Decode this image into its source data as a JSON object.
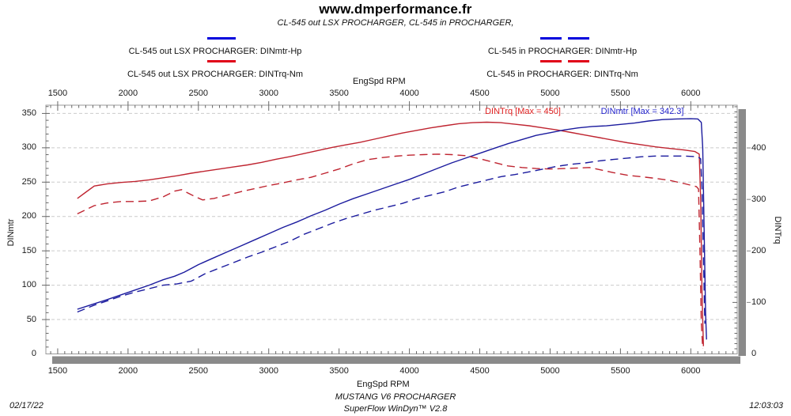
{
  "header": {
    "title": "www.dmperformance.fr",
    "subtitle": "CL-545 out LSX PROCHARGER, CL-545 in PROCHARGER,"
  },
  "legend": {
    "left": [
      {
        "label": "CL-545 out LSX PROCHARGER: DINmtr-Hp",
        "color": "#0000dd",
        "style": "solid"
      },
      {
        "label": "CL-545 out LSX PROCHARGER: DINTrq-Nm",
        "color": "#e00018",
        "style": "solid"
      }
    ],
    "right": [
      {
        "label": "CL-545 in PROCHARGER: DINmtr-Hp",
        "color": "#0000dd",
        "style": "dashed"
      },
      {
        "label": "CL-545 in PROCHARGER: DINTrq-Nm",
        "color": "#e00018",
        "style": "dashed"
      }
    ]
  },
  "axes": {
    "x_label": "EngSpd RPM",
    "y_left_label": "DINmtr",
    "y_right_label": "DINTrq"
  },
  "annotations": [
    {
      "text": "DINTrq [Max = 450]",
      "color": "#e02020"
    },
    {
      "text": "DINmtr [Max = 342.3]",
      "color": "#2222cc"
    }
  ],
  "footer": {
    "vehicle": "MUSTANG V6 PROCHARGER",
    "software": "SuperFlow WinDyn™ V2.8",
    "date": "02/17/22",
    "time": "12:03:03"
  },
  "chart_data": {
    "type": "line",
    "xlabel": "EngSpd RPM",
    "x_range": [
      1416,
      6330
    ],
    "x_ticks": [
      1500,
      2000,
      2500,
      3000,
      3500,
      4000,
      4500,
      5000,
      5500,
      6000
    ],
    "y_left_label": "DINmtr",
    "y_left_range": [
      0,
      362
    ],
    "y_left_ticks": [
      0,
      50,
      100,
      150,
      200,
      250,
      300,
      350
    ],
    "y_right_label": "DINTrq",
    "y_right_range": [
      0,
      483
    ],
    "y_right_ticks": [
      0,
      100,
      200,
      300,
      400
    ],
    "grid": "horizontal-dashed",
    "max_markers": {
      "DINTrq_max": 450,
      "DINmtr_max": 342.3
    },
    "series": [
      {
        "name": "CL-545 out LSX PROCHARGER: DINTrq-Nm",
        "axis": "right",
        "units": "Nm",
        "color": "#bf2430",
        "dash": "solid",
        "points": [
          [
            1640,
            302
          ],
          [
            1700,
            314
          ],
          [
            1760,
            326
          ],
          [
            1850,
            330
          ],
          [
            1950,
            333
          ],
          [
            2050,
            335
          ],
          [
            2150,
            338
          ],
          [
            2250,
            342
          ],
          [
            2350,
            346
          ],
          [
            2450,
            351
          ],
          [
            2550,
            355
          ],
          [
            2650,
            359
          ],
          [
            2750,
            363
          ],
          [
            2850,
            367
          ],
          [
            2950,
            372
          ],
          [
            3050,
            378
          ],
          [
            3150,
            383
          ],
          [
            3250,
            389
          ],
          [
            3350,
            395
          ],
          [
            3450,
            401
          ],
          [
            3550,
            406
          ],
          [
            3650,
            411
          ],
          [
            3750,
            417
          ],
          [
            3850,
            423
          ],
          [
            3950,
            429
          ],
          [
            4050,
            434
          ],
          [
            4150,
            439
          ],
          [
            4250,
            443
          ],
          [
            4350,
            447
          ],
          [
            4450,
            449
          ],
          [
            4550,
            450
          ],
          [
            4650,
            449
          ],
          [
            4750,
            446
          ],
          [
            4850,
            443
          ],
          [
            4950,
            439
          ],
          [
            5050,
            435
          ],
          [
            5150,
            430
          ],
          [
            5250,
            425
          ],
          [
            5350,
            420
          ],
          [
            5450,
            415
          ],
          [
            5550,
            410
          ],
          [
            5650,
            406
          ],
          [
            5750,
            402
          ],
          [
            5850,
            399
          ],
          [
            5950,
            396
          ],
          [
            6030,
            393
          ],
          [
            6060,
            388
          ],
          [
            6070,
            300
          ],
          [
            6080,
            120
          ],
          [
            6090,
            15
          ]
        ]
      },
      {
        "name": "CL-545 out LSX PROCHARGER: DINmtr-Hp",
        "axis": "left",
        "units": "Hp",
        "color": "#1b1b9e",
        "dash": "solid",
        "points": [
          [
            1640,
            65
          ],
          [
            1700,
            69
          ],
          [
            1760,
            73
          ],
          [
            1850,
            79
          ],
          [
            1950,
            86
          ],
          [
            2050,
            93
          ],
          [
            2150,
            100
          ],
          [
            2250,
            108
          ],
          [
            2330,
            113
          ],
          [
            2400,
            119
          ],
          [
            2500,
            130
          ],
          [
            2600,
            139
          ],
          [
            2700,
            148
          ],
          [
            2800,
            157
          ],
          [
            2900,
            166
          ],
          [
            3000,
            175
          ],
          [
            3100,
            184
          ],
          [
            3200,
            192
          ],
          [
            3300,
            201
          ],
          [
            3400,
            209
          ],
          [
            3500,
            218
          ],
          [
            3600,
            226
          ],
          [
            3700,
            233
          ],
          [
            3800,
            240
          ],
          [
            3900,
            247
          ],
          [
            4000,
            254
          ],
          [
            4100,
            262
          ],
          [
            4200,
            270
          ],
          [
            4300,
            278
          ],
          [
            4400,
            285
          ],
          [
            4500,
            292
          ],
          [
            4600,
            299
          ],
          [
            4700,
            306
          ],
          [
            4800,
            312
          ],
          [
            4900,
            318
          ],
          [
            5000,
            322
          ],
          [
            5100,
            326
          ],
          [
            5200,
            329
          ],
          [
            5300,
            331
          ],
          [
            5400,
            332
          ],
          [
            5500,
            334
          ],
          [
            5600,
            336
          ],
          [
            5700,
            339
          ],
          [
            5800,
            341
          ],
          [
            5900,
            342
          ],
          [
            6000,
            342.3
          ],
          [
            6050,
            342
          ],
          [
            6075,
            337
          ],
          [
            6085,
            300
          ],
          [
            6095,
            180
          ],
          [
            6105,
            60
          ],
          [
            6112,
            21
          ]
        ]
      },
      {
        "name": "CL-545 in PROCHARGER: DINTrq-Nm",
        "axis": "right",
        "units": "Nm",
        "color": "#bf2430",
        "dash": "dashed",
        "points": [
          [
            1640,
            272
          ],
          [
            1700,
            280
          ],
          [
            1760,
            288
          ],
          [
            1850,
            293
          ],
          [
            1950,
            296
          ],
          [
            2050,
            296
          ],
          [
            2150,
            297
          ],
          [
            2250,
            305
          ],
          [
            2330,
            316
          ],
          [
            2380,
            319
          ],
          [
            2450,
            309
          ],
          [
            2530,
            299
          ],
          [
            2610,
            302
          ],
          [
            2700,
            308
          ],
          [
            2800,
            315
          ],
          [
            2900,
            321
          ],
          [
            3000,
            327
          ],
          [
            3100,
            332
          ],
          [
            3200,
            338
          ],
          [
            3300,
            343
          ],
          [
            3400,
            351
          ],
          [
            3500,
            359
          ],
          [
            3600,
            369
          ],
          [
            3700,
            377
          ],
          [
            3800,
            381
          ],
          [
            3900,
            384
          ],
          [
            4000,
            386
          ],
          [
            4100,
            387
          ],
          [
            4200,
            388
          ],
          [
            4300,
            387
          ],
          [
            4400,
            385
          ],
          [
            4500,
            379
          ],
          [
            4600,
            372
          ],
          [
            4700,
            365
          ],
          [
            4800,
            362
          ],
          [
            4900,
            360
          ],
          [
            5000,
            359
          ],
          [
            5100,
            360
          ],
          [
            5200,
            361
          ],
          [
            5280,
            362
          ],
          [
            5350,
            358
          ],
          [
            5450,
            352
          ],
          [
            5550,
            347
          ],
          [
            5650,
            344
          ],
          [
            5750,
            341
          ],
          [
            5850,
            337
          ],
          [
            5950,
            331
          ],
          [
            6040,
            325
          ],
          [
            6055,
            320
          ],
          [
            6065,
            200
          ],
          [
            6075,
            60
          ],
          [
            6085,
            10
          ]
        ]
      },
      {
        "name": "CL-545 in PROCHARGER: DINmtr-Hp",
        "axis": "left",
        "units": "Hp",
        "color": "#1b1b9e",
        "dash": "dashed",
        "points": [
          [
            1640,
            61
          ],
          [
            1700,
            66
          ],
          [
            1760,
            71
          ],
          [
            1850,
            77
          ],
          [
            1950,
            84
          ],
          [
            2050,
            90
          ],
          [
            2150,
            95
          ],
          [
            2250,
            100
          ],
          [
            2350,
            102
          ],
          [
            2450,
            106
          ],
          [
            2550,
            117
          ],
          [
            2650,
            125
          ],
          [
            2750,
            133
          ],
          [
            2850,
            141
          ],
          [
            2950,
            148
          ],
          [
            3050,
            156
          ],
          [
            3150,
            164
          ],
          [
            3250,
            174
          ],
          [
            3350,
            182
          ],
          [
            3450,
            190
          ],
          [
            3550,
            197
          ],
          [
            3650,
            203
          ],
          [
            3750,
            209
          ],
          [
            3850,
            214
          ],
          [
            3950,
            219
          ],
          [
            4050,
            226
          ],
          [
            4150,
            231
          ],
          [
            4250,
            236
          ],
          [
            4350,
            243
          ],
          [
            4450,
            248
          ],
          [
            4550,
            253
          ],
          [
            4650,
            258
          ],
          [
            4750,
            261
          ],
          [
            4850,
            265
          ],
          [
            4950,
            269
          ],
          [
            5050,
            273
          ],
          [
            5150,
            276
          ],
          [
            5250,
            278
          ],
          [
            5350,
            281
          ],
          [
            5450,
            283
          ],
          [
            5550,
            285
          ],
          [
            5650,
            287
          ],
          [
            5750,
            288
          ],
          [
            5850,
            288
          ],
          [
            5950,
            288
          ],
          [
            6050,
            287
          ],
          [
            6070,
            284
          ],
          [
            6080,
            240
          ],
          [
            6090,
            140
          ],
          [
            6100,
            44
          ]
        ]
      }
    ]
  }
}
